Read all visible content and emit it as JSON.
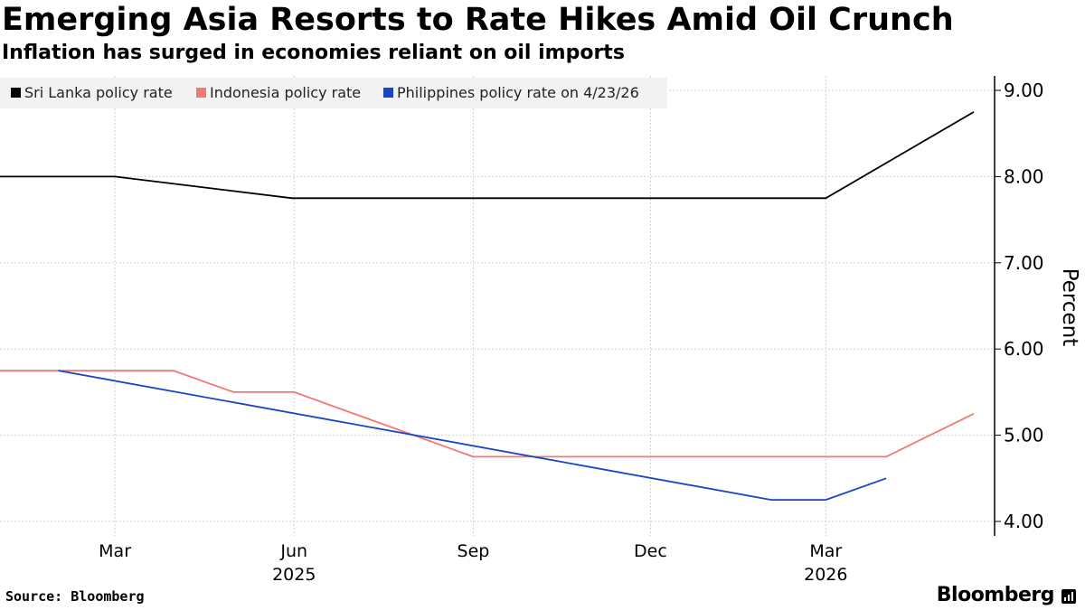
{
  "title": "Emerging Asia Resorts to Rate Hikes Amid Oil Crunch",
  "subtitle": "Inflation has surged in economies reliant on oil imports",
  "source": "Source: Bloomberg",
  "brand": "Bloomberg",
  "chart_data": {
    "type": "line",
    "ylabel": "Percent",
    "ylim": [
      4.0,
      9.0
    ],
    "y_ticks": [
      "4.00",
      "5.00",
      "6.00",
      "7.00",
      "8.00",
      "9.00"
    ],
    "x_range": [
      "2025-01-01",
      "2026-05-16"
    ],
    "x_ticks": [
      {
        "date": "2025-03-01",
        "label": "Mar",
        "year": ""
      },
      {
        "date": "2025-06-01",
        "label": "Jun",
        "year": "2025"
      },
      {
        "date": "2025-09-01",
        "label": "Sep",
        "year": ""
      },
      {
        "date": "2025-12-01",
        "label": "Dec",
        "year": ""
      },
      {
        "date": "2026-03-01",
        "label": "Mar",
        "year": "2026"
      }
    ],
    "grid": true,
    "legend_position": "top-left",
    "series": [
      {
        "name": "Sri Lanka policy rate",
        "color": "#000000",
        "points": [
          {
            "x": "2025-01-01",
            "y": 8.0
          },
          {
            "x": "2025-03-01",
            "y": 8.0
          },
          {
            "x": "2025-05-31",
            "y": 7.75
          },
          {
            "x": "2026-03-01",
            "y": 7.75
          },
          {
            "x": "2026-05-16",
            "y": 8.75
          }
        ]
      },
      {
        "name": "Indonesia policy rate",
        "color": "#f07a73",
        "points": [
          {
            "x": "2025-01-01",
            "y": 5.75
          },
          {
            "x": "2025-03-31",
            "y": 5.75
          },
          {
            "x": "2025-05-01",
            "y": 5.5
          },
          {
            "x": "2025-06-01",
            "y": 5.5
          },
          {
            "x": "2025-09-01",
            "y": 4.75
          },
          {
            "x": "2026-04-01",
            "y": 4.75
          },
          {
            "x": "2026-05-16",
            "y": 5.25
          }
        ]
      },
      {
        "name": "Philippines policy rate on 4/23/26",
        "color": "#1a45c4",
        "points": [
          {
            "x": "2025-01-31",
            "y": 5.75
          },
          {
            "x": "2026-02-01",
            "y": 4.25
          },
          {
            "x": "2026-03-01",
            "y": 4.25
          },
          {
            "x": "2026-04-01",
            "y": 4.5
          }
        ]
      }
    ]
  }
}
